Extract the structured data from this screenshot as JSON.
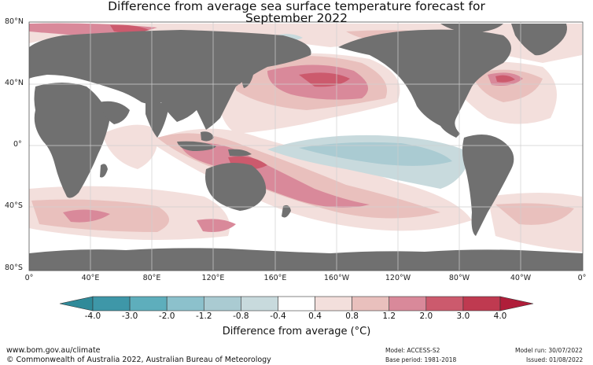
{
  "title_line1": "Difference from average sea surface temperature forecast for",
  "title_line2": "September 2022",
  "lat_labels": [
    "80°N",
    "40°N",
    "0°",
    "40°S",
    "80°S"
  ],
  "lon_labels": [
    "0°",
    "40°E",
    "80°E",
    "120°E",
    "160°E",
    "160°W",
    "120°W",
    "80°W",
    "40°W",
    "0°"
  ],
  "colorbar": {
    "title": "Difference from average (°C)",
    "ticks": [
      "-4.0",
      "-3.0",
      "-2.0",
      "-1.2",
      "-0.8",
      "-0.4",
      "0.4",
      "0.8",
      "1.2",
      "2.0",
      "3.0",
      "4.0"
    ],
    "colors": [
      "#3e97a8",
      "#5eaebc",
      "#8cc1cc",
      "#aacbd2",
      "#c8dadd",
      "#ffffff",
      "#f3dfdc",
      "#e9c0bd",
      "#d9899a",
      "#cc5a6d",
      "#bf3a50"
    ],
    "under_color": "#2f8a99",
    "over_color": "#b01e3a"
  },
  "colors": {
    "land": "#707070",
    "ocean_neutral": "#ffffff",
    "grid": "#cfcfcf"
  },
  "footer": {
    "url": "www.bom.gov.au/climate",
    "copyright": "© Commonwealth of Australia 2022, Australian Bureau of Meteorology",
    "model": "Model: ACCESS-S2",
    "base_period": "Base period: 1981-2018",
    "model_run": "Model run: 30/07/2022",
    "issued": "Issued: 01/08/2022"
  }
}
